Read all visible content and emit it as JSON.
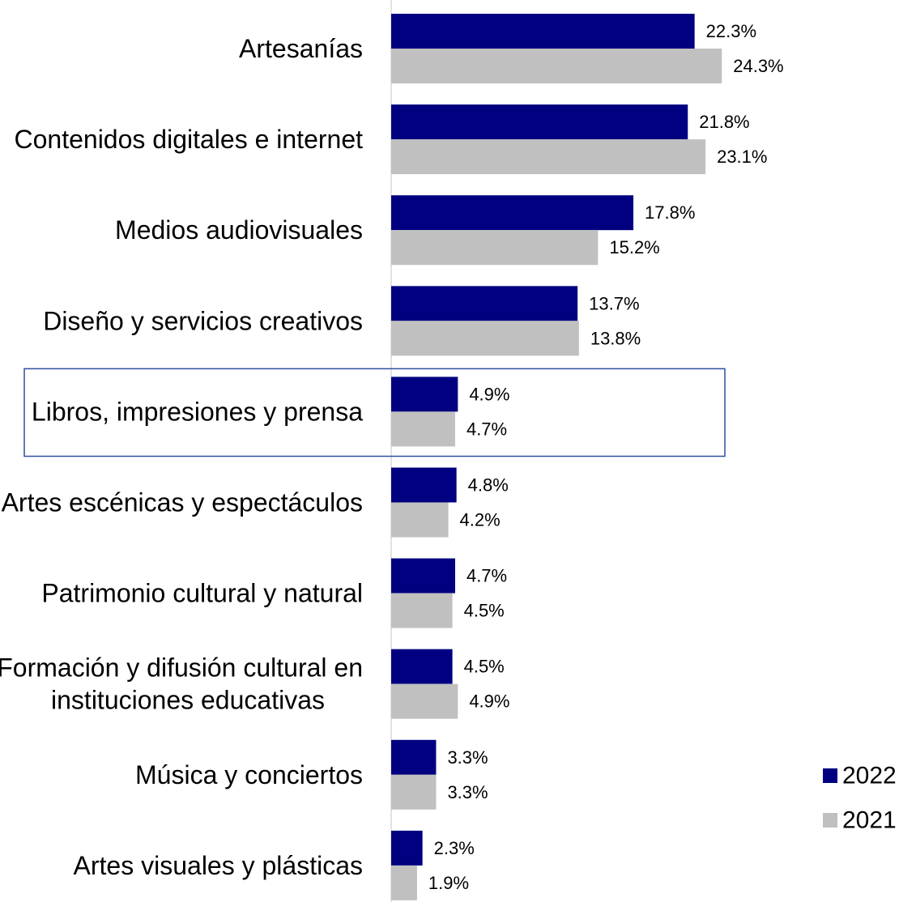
{
  "chart_data": {
    "type": "bar",
    "orientation": "horizontal",
    "categories": [
      "Artesanías",
      "Contenidos digitales e internet",
      "Medios audiovisuales",
      "Diseño y servicios creativos",
      "Libros, impresiones y prensa",
      "Artes escénicas y espectáculos",
      "Patrimonio cultural y natural",
      [
        "Formación y difusión cultural en",
        "instituciones educativas"
      ],
      "Música y conciertos",
      "Artes visuales y plásticas"
    ],
    "series": [
      {
        "name": "2022",
        "color": "#000080",
        "values": [
          22.3,
          21.8,
          17.8,
          13.7,
          4.9,
          4.8,
          4.7,
          4.5,
          3.3,
          2.3
        ],
        "labels": [
          "22.3%",
          "21.8%",
          "17.8%",
          "13.7%",
          "4.9%",
          "4.8%",
          "4.7%",
          "4.5%",
          "3.3%",
          "2.3%"
        ]
      },
      {
        "name": "2021",
        "color": "#C0C0C0",
        "values": [
          24.3,
          23.1,
          15.2,
          13.8,
          4.7,
          4.2,
          4.5,
          4.9,
          3.3,
          1.9
        ],
        "labels": [
          "24.3%",
          "23.1%",
          "15.2%",
          "13.8%",
          "4.7%",
          "4.2%",
          "4.5%",
          "4.9%",
          "3.3%",
          "1.9%"
        ]
      }
    ],
    "highlighted_category": "Libros, impresiones y prensa",
    "highlight_color": "#2F4F9F",
    "legend_position": "bottom-right",
    "grid": false,
    "title": "",
    "xlabel": "",
    "ylabel": ""
  }
}
